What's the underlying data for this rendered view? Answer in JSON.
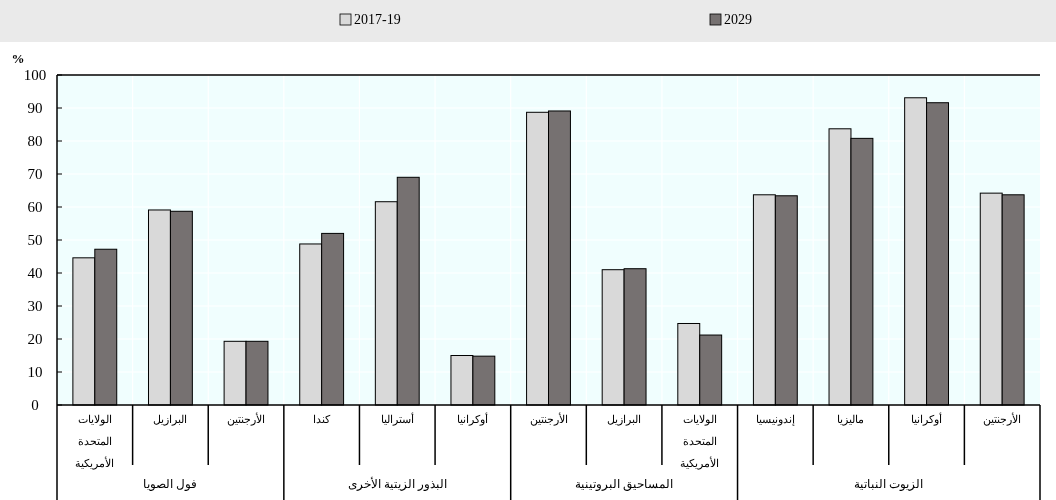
{
  "chart_data": {
    "type": "bar",
    "ylabel": "%",
    "categories": [
      "الولايات المتحدة الأمريكية",
      "البرازيل",
      "الأرجنتين",
      "كندا",
      "أستراليا",
      "أوكرانيا",
      "الأرجنتين",
      "البرازيل",
      "الولايات المتحدة الأمريكية",
      "إندونيسيا",
      "ماليزيا",
      "أوكرانيا",
      "الأرجنتين"
    ],
    "series": [
      {
        "name": "2017-19",
        "color": "#d9d9d9",
        "values": [
          44.6,
          59.1,
          19.3,
          48.8,
          61.6,
          15.0,
          88.7,
          41.0,
          24.7,
          63.7,
          83.7,
          93.1,
          64.2
        ]
      },
      {
        "name": "2029",
        "color": "#767171",
        "values": [
          47.2,
          58.7,
          19.3,
          52.0,
          69.0,
          14.8,
          89.1,
          41.3,
          21.2,
          63.4,
          80.8,
          91.6,
          63.7
        ]
      }
    ],
    "ylim": [
      0,
      100
    ],
    "yticks": [
      0,
      10,
      20,
      30,
      40,
      50,
      60,
      70,
      80,
      90,
      100
    ],
    "grid": true,
    "legend": "top",
    "annotations": [
      "فول الصويا",
      "البذور الزيتية الأخرى",
      "المساحيق البروتينية",
      "الزيوت النباتية"
    ]
  }
}
